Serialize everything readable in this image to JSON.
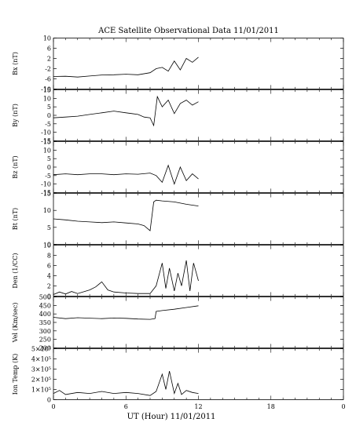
{
  "figure": {
    "title": "ACE Satellite Observational Data   11/01/2011",
    "xlabel": "UT (Hour)   11/01/2011",
    "xticks": [
      "0",
      "6",
      "12",
      "18",
      "0"
    ]
  },
  "chart_data": [
    {
      "type": "line",
      "ylabel": "Bx (nT)",
      "xlim": [
        0,
        24
      ],
      "ylim": [
        -10,
        10
      ],
      "yticks": [
        "-10",
        "-6",
        "-2",
        "2",
        "6",
        "10"
      ],
      "ytick_values": [
        -10,
        -6,
        -2,
        2,
        6,
        10
      ],
      "x": [
        0,
        1,
        2,
        3,
        4,
        5,
        6,
        7,
        8,
        8.5,
        9,
        9.5,
        10,
        10.5,
        11,
        11.5,
        12
      ],
      "y": [
        -5.1,
        -5.0,
        -5.3,
        -4.9,
        -4.5,
        -4.4,
        -4.2,
        -4.4,
        -3.6,
        -2.0,
        -1.5,
        -3.0,
        1.0,
        -2.5,
        2.0,
        0.5,
        2.5
      ]
    },
    {
      "type": "line",
      "ylabel": "By (nT)",
      "xlim": [
        0,
        24
      ],
      "ylim": [
        -15,
        15
      ],
      "yticks": [
        "-15",
        "-10",
        "-5",
        "0",
        "5",
        "10",
        "15"
      ],
      "ytick_values": [
        -15,
        -10,
        -5,
        0,
        5,
        10,
        15
      ],
      "x": [
        0,
        1,
        2,
        3,
        4,
        5,
        6,
        6.5,
        7,
        7.5,
        8,
        8.3,
        8.6,
        9,
        9.5,
        10,
        10.5,
        11,
        11.5,
        12
      ],
      "y": [
        -1.5,
        -1.0,
        -0.5,
        0.5,
        1.5,
        2.5,
        1.5,
        1.0,
        0.5,
        -1.0,
        -1.5,
        -6.0,
        11.0,
        5.0,
        9.0,
        1.0,
        7.0,
        9.0,
        6.0,
        8.0
      ]
    },
    {
      "type": "line",
      "ylabel": "Bz (nT)",
      "xlim": [
        0,
        24
      ],
      "ylim": [
        -15,
        15
      ],
      "yticks": [
        "-15",
        "-10",
        "-5",
        "0",
        "5",
        "10",
        "15"
      ],
      "ytick_values": [
        -15,
        -10,
        -5,
        0,
        5,
        10,
        15
      ],
      "x": [
        0,
        1,
        2,
        3,
        4,
        5,
        6,
        7,
        8,
        8.5,
        9,
        9.5,
        10,
        10.5,
        11,
        11.5,
        12
      ],
      "y": [
        -4.5,
        -4.0,
        -4.5,
        -4.0,
        -4.0,
        -4.5,
        -4.0,
        -4.2,
        -3.5,
        -5.0,
        -9.0,
        1.0,
        -10.0,
        0.0,
        -8.0,
        -4.0,
        -7.0
      ]
    },
    {
      "type": "line",
      "ylabel": "Bt (nT)",
      "xlim": [
        0,
        24
      ],
      "ylim": [
        0,
        15
      ],
      "yticks": [
        "0",
        "5",
        "10",
        "15"
      ],
      "ytick_values": [
        0,
        5,
        10,
        15
      ],
      "x": [
        0,
        1,
        2,
        3,
        4,
        5,
        6,
        7,
        7.5,
        8,
        8.3,
        8.5,
        9,
        10,
        11,
        12
      ],
      "y": [
        7.5,
        7.2,
        6.8,
        6.6,
        6.4,
        6.6,
        6.3,
        6.0,
        5.5,
        4.0,
        12.5,
        13.0,
        12.8,
        12.5,
        11.8,
        11.3
      ]
    },
    {
      "type": "line",
      "ylabel": "Den (1/CC)",
      "xlim": [
        0,
        24
      ],
      "ylim": [
        0,
        10
      ],
      "yticks": [
        "0",
        "2",
        "4",
        "6",
        "8",
        "10"
      ],
      "ytick_values": [
        0,
        2,
        4,
        6,
        8,
        10
      ],
      "x": [
        0,
        0.5,
        1,
        1.5,
        2,
        3,
        3.5,
        4,
        4.5,
        5,
        6,
        7,
        8,
        8.5,
        9,
        9.3,
        9.6,
        10,
        10.3,
        10.6,
        11,
        11.3,
        11.6,
        12
      ],
      "y": [
        0.3,
        0.8,
        0.4,
        0.9,
        0.5,
        1.2,
        1.8,
        2.8,
        1.2,
        0.8,
        0.6,
        0.5,
        0.5,
        2.0,
        6.5,
        1.5,
        5.5,
        1.0,
        4.5,
        2.0,
        7.0,
        1.0,
        6.5,
        3.0
      ]
    },
    {
      "type": "line",
      "ylabel": "Vel (Km/sec)",
      "xlim": [
        0,
        24
      ],
      "ylim": [
        200,
        500
      ],
      "yticks": [
        "200",
        "250",
        "300",
        "350",
        "400",
        "450",
        "500"
      ],
      "ytick_values": [
        200,
        250,
        300,
        350,
        400,
        450,
        500
      ],
      "x": [
        0,
        1,
        2,
        3,
        4,
        5,
        6,
        7,
        8,
        8.4,
        8.5,
        9,
        10,
        11,
        12
      ],
      "y": [
        380,
        372,
        378,
        375,
        372,
        376,
        374,
        370,
        368,
        372,
        415,
        420,
        428,
        438,
        448
      ]
    },
    {
      "type": "line",
      "ylabel": "Ion Temp (K)",
      "xlim": [
        0,
        24
      ],
      "ylim": [
        0,
        500000
      ],
      "yticks": [
        "0",
        "1×10⁵",
        "2×10⁵",
        "3×10⁵",
        "4×10⁵",
        "5×10⁵"
      ],
      "ytick_values": [
        0,
        100000,
        200000,
        300000,
        400000,
        500000
      ],
      "x": [
        0,
        0.5,
        1,
        2,
        3,
        4,
        5,
        6,
        7,
        8,
        8.5,
        9,
        9.3,
        9.6,
        10,
        10.3,
        10.6,
        11,
        11.5,
        12
      ],
      "y": [
        60000,
        90000,
        50000,
        70000,
        60000,
        80000,
        60000,
        70000,
        60000,
        40000,
        80000,
        250000,
        100000,
        280000,
        60000,
        160000,
        50000,
        90000,
        70000,
        60000
      ]
    }
  ]
}
